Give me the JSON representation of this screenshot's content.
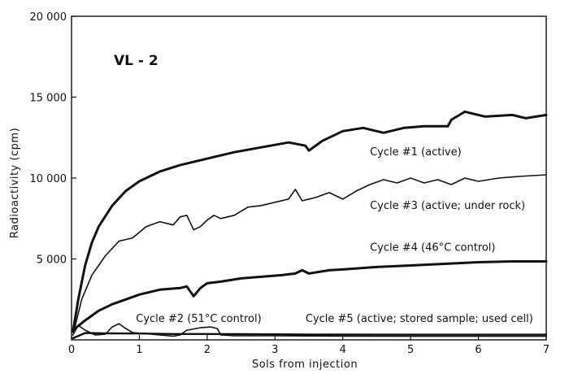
{
  "chart_data": {
    "type": "line",
    "panel_label": "VL - 2",
    "xlabel": "Sols from injection",
    "ylabel": "Radioactivity (cpm)",
    "xlim": [
      0,
      7
    ],
    "ylim": [
      0,
      20000
    ],
    "x_ticks": [
      0,
      1,
      2,
      3,
      4,
      5,
      6,
      7
    ],
    "x_tick_labels": [
      "0",
      "1",
      "2",
      "3",
      "4",
      "5",
      "6",
      "7"
    ],
    "y_ticks": [
      5000,
      10000,
      15000,
      20000
    ],
    "y_tick_labels": [
      "5 000",
      "10 000",
      "15 000",
      "20 000"
    ],
    "grid": false,
    "series": [
      {
        "name": "Cycle #1 (active)",
        "color": "#111111",
        "points": [
          [
            0.02,
            500
          ],
          [
            0.1,
            2500
          ],
          [
            0.2,
            4600
          ],
          [
            0.3,
            6000
          ],
          [
            0.4,
            7000
          ],
          [
            0.6,
            8300
          ],
          [
            0.8,
            9200
          ],
          [
            1.0,
            9800
          ],
          [
            1.3,
            10400
          ],
          [
            1.6,
            10800
          ],
          [
            2.0,
            11200
          ],
          [
            2.4,
            11600
          ],
          [
            2.8,
            11900
          ],
          [
            3.2,
            12200
          ],
          [
            3.45,
            12000
          ],
          [
            3.5,
            11700
          ],
          [
            3.7,
            12300
          ],
          [
            4.0,
            12900
          ],
          [
            4.3,
            13100
          ],
          [
            4.6,
            12800
          ],
          [
            4.9,
            13100
          ],
          [
            5.2,
            13200
          ],
          [
            5.55,
            13200
          ],
          [
            5.6,
            13600
          ],
          [
            5.8,
            14100
          ],
          [
            6.1,
            13800
          ],
          [
            6.5,
            13900
          ],
          [
            6.7,
            13700
          ],
          [
            7.0,
            13900
          ]
        ]
      },
      {
        "name": "Cycle #3 (active; under rock)",
        "color": "#111111",
        "points": [
          [
            0.05,
            800
          ],
          [
            0.15,
            2500
          ],
          [
            0.3,
            4000
          ],
          [
            0.5,
            5200
          ],
          [
            0.7,
            6100
          ],
          [
            0.9,
            6300
          ],
          [
            1.1,
            7000
          ],
          [
            1.3,
            7300
          ],
          [
            1.5,
            7100
          ],
          [
            1.6,
            7600
          ],
          [
            1.7,
            7700
          ],
          [
            1.8,
            6800
          ],
          [
            1.9,
            7000
          ],
          [
            2.0,
            7400
          ],
          [
            2.1,
            7700
          ],
          [
            2.2,
            7500
          ],
          [
            2.4,
            7700
          ],
          [
            2.6,
            8200
          ],
          [
            2.8,
            8300
          ],
          [
            3.0,
            8500
          ],
          [
            3.2,
            8700
          ],
          [
            3.3,
            9300
          ],
          [
            3.4,
            8600
          ],
          [
            3.6,
            8800
          ],
          [
            3.8,
            9100
          ],
          [
            4.0,
            8700
          ],
          [
            4.2,
            9200
          ],
          [
            4.4,
            9600
          ],
          [
            4.6,
            9900
          ],
          [
            4.8,
            9700
          ],
          [
            5.0,
            10000
          ],
          [
            5.2,
            9700
          ],
          [
            5.4,
            9900
          ],
          [
            5.6,
            9600
          ],
          [
            5.8,
            10000
          ],
          [
            6.0,
            9800
          ],
          [
            6.3,
            10000
          ],
          [
            6.6,
            10100
          ],
          [
            7.0,
            10200
          ]
        ]
      },
      {
        "name": "Cycle #4 (46°C control)",
        "color": "#111111",
        "points": [
          [
            0.02,
            600
          ],
          [
            0.2,
            1200
          ],
          [
            0.4,
            1800
          ],
          [
            0.6,
            2200
          ],
          [
            0.8,
            2500
          ],
          [
            1.0,
            2800
          ],
          [
            1.3,
            3100
          ],
          [
            1.6,
            3200
          ],
          [
            1.7,
            3300
          ],
          [
            1.8,
            2700
          ],
          [
            1.9,
            3200
          ],
          [
            2.0,
            3500
          ],
          [
            2.2,
            3600
          ],
          [
            2.5,
            3800
          ],
          [
            2.8,
            3900
          ],
          [
            3.1,
            4000
          ],
          [
            3.3,
            4100
          ],
          [
            3.4,
            4300
          ],
          [
            3.5,
            4100
          ],
          [
            3.8,
            4300
          ],
          [
            4.0,
            4350
          ],
          [
            4.5,
            4500
          ],
          [
            5.0,
            4600
          ],
          [
            5.5,
            4700
          ],
          [
            6.0,
            4800
          ],
          [
            6.5,
            4850
          ],
          [
            7.0,
            4850
          ]
        ]
      },
      {
        "name": "Cycle #2 (51°C control)",
        "color": "#111111",
        "points": [
          [
            0.02,
            300
          ],
          [
            0.1,
            900
          ],
          [
            0.2,
            600
          ],
          [
            0.35,
            300
          ],
          [
            0.5,
            350
          ],
          [
            0.6,
            800
          ],
          [
            0.7,
            1000
          ],
          [
            0.8,
            700
          ],
          [
            0.9,
            450
          ],
          [
            1.1,
            380
          ],
          [
            1.3,
            300
          ],
          [
            1.5,
            230
          ],
          [
            1.6,
            300
          ],
          [
            1.7,
            600
          ],
          [
            1.9,
            750
          ],
          [
            2.05,
            800
          ],
          [
            2.15,
            700
          ],
          [
            2.2,
            300
          ],
          [
            2.4,
            250
          ],
          [
            3.0,
            250
          ],
          [
            3.5,
            240
          ],
          [
            4.0,
            230
          ],
          [
            5.0,
            220
          ],
          [
            6.0,
            220
          ],
          [
            7.0,
            220
          ]
        ]
      },
      {
        "name": "Cycle #5 (active; stored sample; used cell)",
        "color": "#111111",
        "points": [
          [
            0.02,
            100
          ],
          [
            0.2,
            420
          ],
          [
            0.5,
            400
          ],
          [
            1.0,
            390
          ],
          [
            1.5,
            360
          ],
          [
            2.0,
            360
          ],
          [
            2.5,
            350
          ],
          [
            3.0,
            340
          ],
          [
            3.5,
            330
          ],
          [
            4.0,
            330
          ],
          [
            4.5,
            320
          ],
          [
            5.0,
            320
          ],
          [
            6.0,
            320
          ],
          [
            7.0,
            320
          ]
        ]
      }
    ],
    "annotations": [
      {
        "text": "Cycle #1 (active)",
        "series": 0,
        "x": 4.4,
        "y": 11400,
        "anchor": "start"
      },
      {
        "text": "Cycle #3 (active; under rock)",
        "series": 1,
        "x": 4.4,
        "y": 8100,
        "anchor": "start"
      },
      {
        "text": "Cycle #4 (46°C control)",
        "series": 2,
        "x": 4.4,
        "y": 5500,
        "anchor": "start"
      },
      {
        "text": "Cycle #2 (51°C control)",
        "series": 3,
        "x": 0.95,
        "y": 1100,
        "anchor": "start"
      },
      {
        "text": "Cycle #5 (active; stored sample; used cell)",
        "series": 4,
        "x": 3.45,
        "y": 1100,
        "anchor": "start"
      }
    ]
  }
}
